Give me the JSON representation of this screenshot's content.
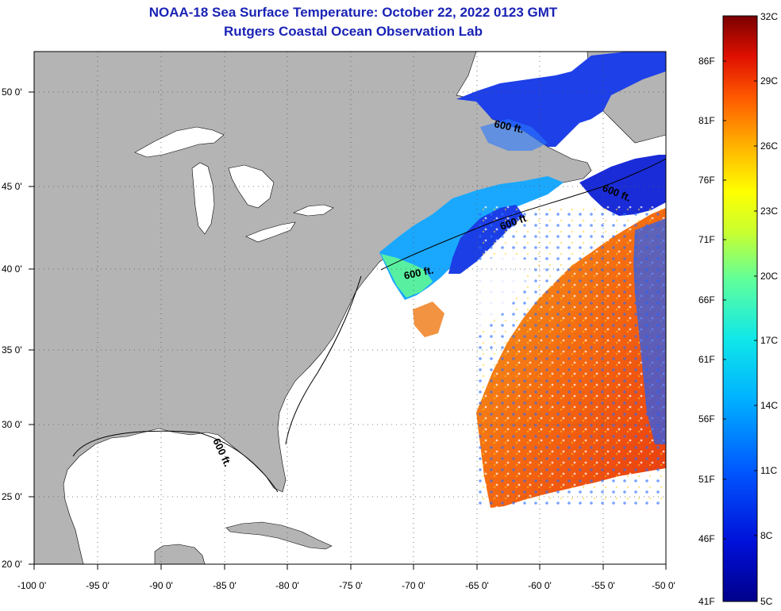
{
  "title": {
    "line1": "NOAA-18 Sea Surface Temperature:  October 22, 2022 0123 GMT",
    "line2": "Rutgers Coastal Ocean Observation Lab"
  },
  "map": {
    "lon_range": [
      -100,
      -50
    ],
    "lat_range": [
      20,
      52.5
    ],
    "lon_ticks": [
      {
        "value": -100,
        "label": "-100 0'"
      },
      {
        "value": -95,
        "label": "-95 0'"
      },
      {
        "value": -90,
        "label": "-90 0'"
      },
      {
        "value": -85,
        "label": "-85 0'"
      },
      {
        "value": -80,
        "label": "-80 0'"
      },
      {
        "value": -75,
        "label": "-75 0'"
      },
      {
        "value": -70,
        "label": "-70 0'"
      },
      {
        "value": -65,
        "label": "-65 0'"
      },
      {
        "value": -60,
        "label": "-60 0'"
      },
      {
        "value": -55,
        "label": "-55 0'"
      },
      {
        "value": -50,
        "label": "-50 0'"
      }
    ],
    "lat_ticks": [
      {
        "value": 50,
        "label": "50 0'"
      },
      {
        "value": 45,
        "label": "45 0'"
      },
      {
        "value": 40,
        "label": "40 0'"
      },
      {
        "value": 35,
        "label": "35 0'"
      },
      {
        "value": 30,
        "label": "30 0'"
      },
      {
        "value": 25,
        "label": "25 0'"
      },
      {
        "value": 20,
        "label": "20 0'"
      }
    ],
    "contour_labels": [
      "600 ft.",
      "600 ft.",
      "600 ft",
      "600 ft.",
      "600 ft."
    ],
    "grid": true
  },
  "colorbar": {
    "celsius_labels": [
      "32C",
      "29C",
      "26C",
      "23C",
      "20C",
      "17C",
      "14C",
      "11C",
      "8C",
      "5C"
    ],
    "fahrenheit_labels": [
      "86F",
      "81F",
      "76F",
      "71F",
      "66F",
      "61F",
      "56F",
      "51F",
      "46F",
      "41F"
    ],
    "range_c": [
      5,
      32
    ]
  },
  "colors": {
    "land": "#b4b4b4",
    "title": "#1a23b5",
    "grid": "#555555"
  }
}
